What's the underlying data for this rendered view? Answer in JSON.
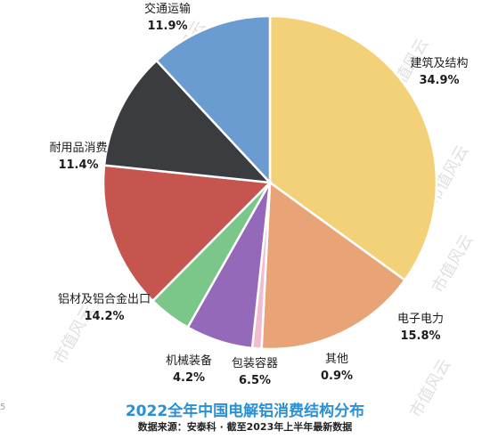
{
  "chart_data": {
    "type": "pie",
    "title": "2022全年中国电解铝消费结构分布",
    "source": "数据来源：安泰科 · 截至2023年上半年最新数据",
    "slices": [
      {
        "label": "建筑及结构",
        "value": 34.9,
        "display": "34.9%",
        "color": "#f3d178"
      },
      {
        "label": "电子电力",
        "value": 15.8,
        "display": "15.8%",
        "color": "#e8a377"
      },
      {
        "label": "其他",
        "value": 0.9,
        "display": "0.9%",
        "color": "#f2bcd0"
      },
      {
        "label": "包装容器",
        "value": 6.5,
        "display": "6.5%",
        "color": "#9569b9"
      },
      {
        "label": "机械装备",
        "value": 4.2,
        "display": "4.2%",
        "color": "#7bc689"
      },
      {
        "label": "铝材及铝合金出口",
        "value": 14.2,
        "display": "14.2%",
        "color": "#c65550"
      },
      {
        "label": "耐用品消费",
        "value": 11.4,
        "display": "11.4%",
        "color": "#3a3c40"
      },
      {
        "label": "交通运输",
        "value": 11.9,
        "display": "11.9%",
        "color": "#6a9bd1"
      }
    ]
  },
  "watermark": "市值风云",
  "page_number": "5"
}
